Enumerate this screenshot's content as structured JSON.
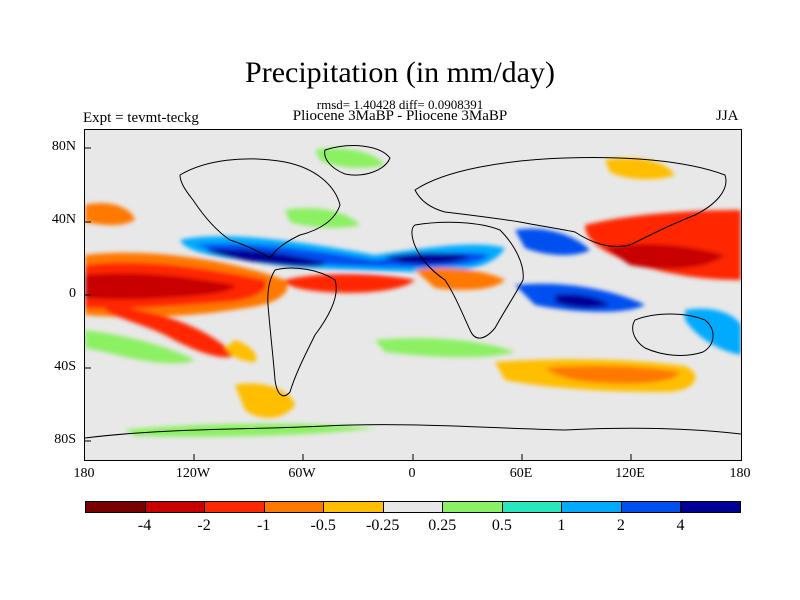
{
  "title": "Precipitation (in mm/day)",
  "stats": "rmsd= 1.40428 diff= 0.0908391",
  "experiment": "Expt = tevmt-teckg",
  "subtitle": "Pliocene   3MaBP - Pliocene   3MaBP",
  "season": "JJA",
  "map": {
    "lat_labels": [
      "80N",
      "40N",
      "0",
      "40S",
      "80S"
    ],
    "lon_labels": [
      "180",
      "120W",
      "60W",
      "0",
      "60E",
      "120E",
      "180"
    ]
  },
  "colorbar": {
    "colors": [
      "#7a0000",
      "#c80000",
      "#ff2800",
      "#ff7800",
      "#ffbe00",
      "#e8e8e8",
      "#8cf064",
      "#28e6be",
      "#00aaff",
      "#0050f0",
      "#000096"
    ],
    "labels": [
      "-4",
      "-2",
      "-1",
      "-0.5",
      "-0.25",
      "0.25",
      "0.5",
      "1",
      "2",
      "4"
    ]
  }
}
